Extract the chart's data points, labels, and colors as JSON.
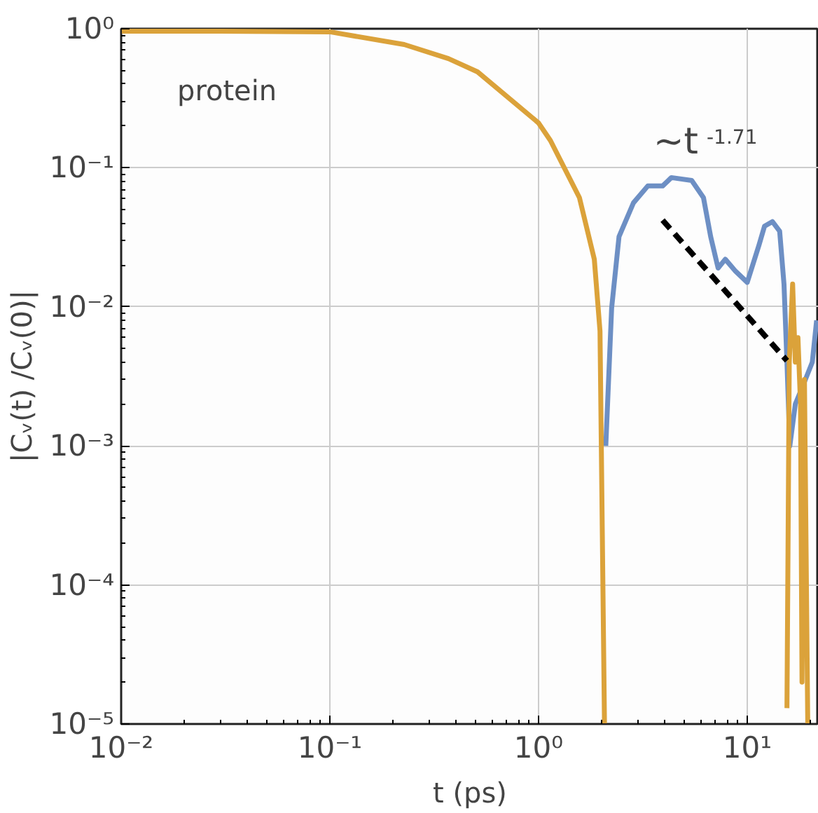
{
  "chart_data": {
    "type": "line",
    "xlabel": "t (ps)",
    "ylabel": "|Cᵥ(t) /Cᵥ(0)|",
    "log": "xy",
    "grid": true,
    "line_style": "solid",
    "annotations": [
      "protein",
      "∼t$^{-1.71}$"
    ],
    "xlim": [
      0.01,
      22
    ],
    "ylim": [
      1e-05,
      1
    ],
    "xticks": [
      {
        "value": 0.01,
        "label": "10⁻²"
      },
      {
        "value": 0.1,
        "label": "10⁻¹"
      },
      {
        "value": 1,
        "label": "10⁰"
      },
      {
        "value": 10,
        "label": "10¹"
      }
    ],
    "yticks": [
      {
        "value": 1e-05,
        "label": "10⁻⁵"
      },
      {
        "value": 0.0001,
        "label": "10⁻⁴"
      },
      {
        "value": 0.001,
        "label": "10⁻³"
      },
      {
        "value": 0.01,
        "label": "10⁻²"
      },
      {
        "value": 0.1,
        "label": "10⁻¹"
      },
      {
        "value": 1,
        "label": "10⁰"
      }
    ],
    "series": [
      {
        "color": "#6d8fc4",
        "x": [
          2.1,
          2.24,
          2.43,
          2.85,
          3.34,
          3.93,
          4.33,
          5.42,
          6.17,
          6.68,
          7.25,
          7.85,
          8.8,
          10,
          11.4,
          12.1,
          13.2,
          14.3,
          15,
          15.5,
          16,
          17,
          19,
          20.5,
          21.5
        ],
        "values": [
          0.001,
          0.0098,
          0.032,
          0.056,
          0.074,
          0.074,
          0.085,
          0.081,
          0.061,
          0.032,
          0.019,
          0.022,
          0.018,
          0.015,
          0.028,
          0.038,
          0.041,
          0.035,
          0.0146,
          0.004,
          0.001,
          0.002,
          0.003,
          0.004,
          0.008
        ]
      },
      {
        "color": "#dba23a",
        "x": [
          0.01,
          0.03,
          0.1,
          0.227,
          0.37,
          0.51,
          1.0,
          1.14,
          1.57,
          1.85,
          1.97,
          2.07,
          10,
          15.5,
          15.9,
          16.5,
          17.0,
          17.5,
          18.0,
          18.3,
          18.8,
          19.5
        ],
        "values": [
          0.96,
          0.96,
          0.95,
          0.77,
          0.61,
          0.49,
          0.21,
          0.157,
          0.061,
          0.022,
          0.0067,
          1e-05,
          null,
          1.3e-05,
          0.004,
          0.0146,
          0.004,
          0.006,
          0.002,
          2e-05,
          0.003,
          1e-05
        ]
      },
      {
        "color": "#000000",
        "line_style": "dashed",
        "x": [
          3.93,
          15.5
        ],
        "values": [
          0.042,
          0.0041
        ]
      }
    ]
  }
}
